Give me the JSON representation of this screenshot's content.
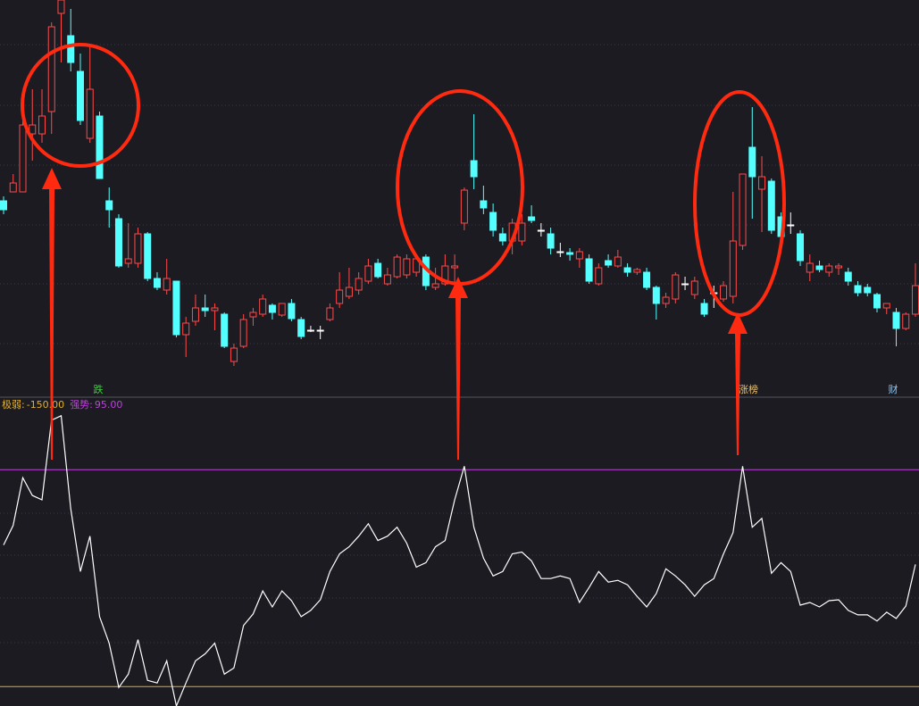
{
  "chart_data": [
    {
      "type": "candlestick",
      "ylim": [
        0,
        445
      ],
      "ohlc": [
        [
          220,
          225,
          205,
          210
        ],
        [
          230,
          250,
          230,
          240
        ],
        [
          230,
          315,
          230,
          305
        ],
        [
          295,
          345,
          265,
          305
        ],
        [
          295,
          345,
          285,
          315
        ],
        [
          320,
          420,
          295,
          415
        ],
        [
          430,
          445,
          375,
          445
        ],
        [
          405,
          435,
          365,
          375
        ],
        [
          365,
          385,
          305,
          310
        ],
        [
          290,
          395,
          285,
          345
        ],
        [
          315,
          320,
          245,
          245
        ],
        [
          220,
          235,
          190,
          210
        ],
        [
          200,
          205,
          145,
          147
        ],
        [
          150,
          195,
          145,
          155
        ],
        [
          150,
          190,
          145,
          183
        ],
        [
          183,
          185,
          130,
          133
        ],
        [
          133,
          140,
          120,
          123
        ],
        [
          120,
          155,
          115,
          133
        ],
        [
          130,
          130,
          67,
          70
        ],
        [
          70,
          90,
          45,
          83
        ],
        [
          85,
          115,
          80,
          100
        ],
        [
          100,
          115,
          90,
          97
        ],
        [
          97,
          105,
          75,
          100
        ],
        [
          93,
          95,
          55,
          57
        ],
        [
          40,
          60,
          35,
          55
        ],
        [
          57,
          93,
          55,
          87
        ],
        [
          90,
          100,
          80,
          95
        ],
        [
          93,
          115,
          90,
          110
        ],
        [
          103,
          105,
          87,
          95
        ],
        [
          92,
          105,
          90,
          105
        ],
        [
          105,
          110,
          85,
          88
        ],
        [
          87,
          90,
          65,
          68
        ],
        [
          75,
          80,
          73,
          75
        ],
        [
          75,
          80,
          65,
          75
        ],
        [
          87,
          105,
          85,
          100
        ],
        [
          105,
          140,
          100,
          120
        ],
        [
          113,
          145,
          110,
          123
        ],
        [
          120,
          140,
          115,
          133
        ],
        [
          130,
          155,
          127,
          147
        ],
        [
          150,
          155,
          133,
          135
        ],
        [
          127,
          145,
          125,
          137
        ],
        [
          135,
          160,
          133,
          157
        ],
        [
          137,
          160,
          133,
          155
        ],
        [
          140,
          160,
          135,
          155
        ],
        [
          157,
          160,
          120,
          125
        ],
        [
          123,
          145,
          120,
          127
        ],
        [
          127,
          160,
          125,
          147
        ],
        [
          145,
          160,
          120,
          147
        ],
        [
          195,
          235,
          187,
          232
        ],
        [
          265,
          317,
          233,
          247
        ],
        [
          220,
          237,
          205,
          212
        ],
        [
          207,
          217,
          180,
          187
        ],
        [
          183,
          190,
          170,
          175
        ],
        [
          175,
          200,
          160,
          195
        ],
        [
          175,
          205,
          170,
          195
        ],
        [
          202,
          215,
          195,
          198
        ],
        [
          187,
          195,
          180,
          187
        ],
        [
          183,
          190,
          160,
          167
        ],
        [
          163,
          173,
          157,
          163
        ],
        [
          162,
          167,
          153,
          160
        ],
        [
          155,
          167,
          145,
          163
        ],
        [
          155,
          160,
          127,
          130
        ],
        [
          127,
          150,
          125,
          145
        ],
        [
          153,
          160,
          145,
          148
        ],
        [
          147,
          165,
          145,
          157
        ],
        [
          145,
          150,
          135,
          140
        ],
        [
          140,
          145,
          137,
          143
        ],
        [
          140,
          145,
          120,
          123
        ],
        [
          123,
          125,
          87,
          105
        ],
        [
          105,
          117,
          100,
          112
        ],
        [
          110,
          140,
          105,
          137
        ],
        [
          127,
          135,
          120,
          127
        ],
        [
          115,
          135,
          110,
          130
        ],
        [
          105,
          110,
          90,
          93
        ],
        [
          117,
          125,
          100,
          117
        ],
        [
          110,
          130,
          107,
          125
        ],
        [
          113,
          230,
          105,
          175
        ],
        [
          170,
          250,
          165,
          250
        ],
        [
          280,
          325,
          200,
          247
        ],
        [
          233,
          270,
          185,
          247
        ],
        [
          242,
          245,
          183,
          187
        ],
        [
          202,
          207,
          177,
          180
        ],
        [
          193,
          207,
          183,
          193
        ],
        [
          183,
          187,
          147,
          153
        ],
        [
          140,
          160,
          130,
          150
        ],
        [
          147,
          153,
          140,
          143
        ],
        [
          140,
          150,
          135,
          147
        ],
        [
          145,
          150,
          137,
          147
        ],
        [
          140,
          145,
          125,
          130
        ],
        [
          125,
          130,
          113,
          117
        ],
        [
          123,
          127,
          113,
          117
        ],
        [
          115,
          117,
          95,
          100
        ],
        [
          100,
          105,
          93,
          105
        ],
        [
          95,
          100,
          57,
          77
        ],
        [
          77,
          95,
          75,
          93
        ],
        [
          93,
          150,
          90,
          125
        ]
      ],
      "up_color": "#ff4a4a",
      "down_color": "#54ffff",
      "flat_color": "#ffffff",
      "annotations": [
        {
          "text": "跌",
          "color": "#3fd03f"
        },
        {
          "text": "涨榜",
          "color": "#e8c070"
        },
        {
          "text": "财",
          "color": "#7fc8ff"
        }
      ]
    },
    {
      "type": "line",
      "ylim": [
        -172,
        175
      ],
      "color": "#ffffff",
      "values": [
        10,
        32,
        86,
        66,
        61,
        151,
        156,
        51,
        -20,
        20,
        -71,
        -101,
        -151,
        -136,
        -97,
        -143,
        -146,
        -121,
        -172,
        -146,
        -121,
        -113,
        -101,
        -136,
        -129,
        -81,
        -68,
        -42,
        -60,
        -42,
        -53,
        -71,
        -64,
        -52,
        -20,
        0,
        8,
        20,
        34,
        15,
        20,
        30,
        12,
        -15,
        -10,
        8,
        15,
        61,
        99,
        30,
        -5,
        -25,
        -20,
        0,
        2,
        -8,
        -28,
        -28,
        -25,
        -28,
        -55,
        -38,
        -20,
        -32,
        -30,
        -35,
        -48,
        -60,
        -45,
        -17,
        -25,
        -35,
        -48,
        -35,
        -28,
        0,
        24,
        99,
        30,
        40,
        -22,
        -10,
        -20,
        -58,
        -55,
        -60,
        -53,
        -52,
        -64,
        -69,
        -69,
        -76,
        -66,
        -73,
        -59,
        -12
      ],
      "levels": [
        {
          "name": "极弱:",
          "value": -150,
          "label": "-150.00",
          "color": "#e0b030"
        },
        {
          "name": "强势:",
          "value": 95,
          "label": "95.00",
          "color": "#c040e0"
        }
      ]
    }
  ]
}
